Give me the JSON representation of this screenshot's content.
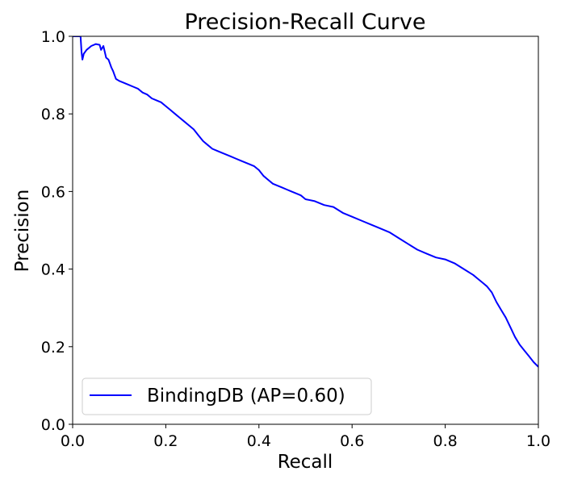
{
  "chart_data": {
    "type": "line",
    "title": "Precision-Recall Curve",
    "xlabel": "Recall",
    "ylabel": "Precision",
    "xlim": [
      0.0,
      1.0
    ],
    "ylim": [
      0.0,
      1.0
    ],
    "xticks": [
      "0.0",
      "0.2",
      "0.4",
      "0.6",
      "0.8",
      "1.0"
    ],
    "yticks": [
      "0.0",
      "0.2",
      "0.4",
      "0.6",
      "0.8",
      "1.0"
    ],
    "grid": false,
    "legend_position": "lower-left",
    "series": [
      {
        "name": "BindingDB (AP=0.60)",
        "color": "#0000ff",
        "x": [
          0.0,
          0.017,
          0.019,
          0.021,
          0.024,
          0.03,
          0.04,
          0.05,
          0.058,
          0.061,
          0.066,
          0.072,
          0.077,
          0.08,
          0.083,
          0.087,
          0.09,
          0.093,
          0.1,
          0.11,
          0.12,
          0.13,
          0.14,
          0.15,
          0.16,
          0.17,
          0.18,
          0.19,
          0.2,
          0.21,
          0.22,
          0.23,
          0.24,
          0.25,
          0.26,
          0.27,
          0.28,
          0.29,
          0.3,
          0.31,
          0.32,
          0.33,
          0.34,
          0.35,
          0.36,
          0.37,
          0.38,
          0.39,
          0.4,
          0.41,
          0.42,
          0.43,
          0.44,
          0.45,
          0.46,
          0.47,
          0.48,
          0.49,
          0.5,
          0.52,
          0.54,
          0.56,
          0.58,
          0.6,
          0.62,
          0.64,
          0.66,
          0.68,
          0.7,
          0.72,
          0.74,
          0.76,
          0.78,
          0.8,
          0.82,
          0.84,
          0.86,
          0.87,
          0.88,
          0.89,
          0.9,
          0.91,
          0.92,
          0.93,
          0.94,
          0.95,
          0.96,
          0.97,
          0.98,
          0.99,
          1.0
        ],
        "y": [
          1.0,
          1.0,
          0.96,
          0.94,
          0.955,
          0.965,
          0.975,
          0.98,
          0.978,
          0.965,
          0.975,
          0.945,
          0.94,
          0.93,
          0.92,
          0.91,
          0.9,
          0.89,
          0.885,
          0.88,
          0.875,
          0.87,
          0.865,
          0.855,
          0.85,
          0.84,
          0.835,
          0.83,
          0.82,
          0.81,
          0.8,
          0.79,
          0.78,
          0.77,
          0.76,
          0.745,
          0.73,
          0.72,
          0.71,
          0.705,
          0.7,
          0.695,
          0.69,
          0.685,
          0.68,
          0.675,
          0.67,
          0.665,
          0.655,
          0.64,
          0.63,
          0.62,
          0.615,
          0.61,
          0.605,
          0.6,
          0.595,
          0.59,
          0.58,
          0.575,
          0.565,
          0.56,
          0.545,
          0.535,
          0.525,
          0.515,
          0.505,
          0.495,
          0.48,
          0.465,
          0.45,
          0.44,
          0.43,
          0.425,
          0.415,
          0.4,
          0.385,
          0.375,
          0.365,
          0.355,
          0.34,
          0.315,
          0.295,
          0.275,
          0.25,
          0.225,
          0.205,
          0.19,
          0.175,
          0.16,
          0.148
        ]
      }
    ]
  }
}
